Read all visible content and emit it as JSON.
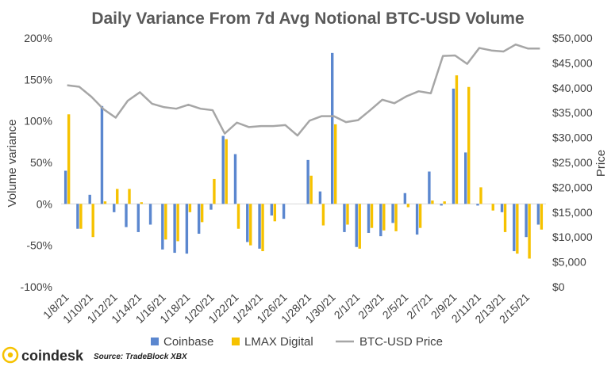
{
  "chart_data": {
    "type": "bar",
    "title": "Daily Variance From 7d Avg Notional BTC-USD Volume",
    "ylabel": "Volume variance",
    "y2label": "Price",
    "ylim": [
      -100,
      200
    ],
    "y2lim": [
      0,
      50000
    ],
    "yticks": [
      "200%",
      "150%",
      "100%",
      "50%",
      "0%",
      "-50%",
      "-100%"
    ],
    "y2ticks": [
      "$50,000",
      "$45,000",
      "$40,000",
      "$35,000",
      "$30,000",
      "$25,000",
      "$20,000",
      "$15,000",
      "$10,000",
      "$5,000",
      "$0"
    ],
    "x_tick_labels": [
      "1/8/21",
      "1/10/21",
      "1/12/21",
      "1/14/21",
      "1/16/21",
      "1/18/21",
      "1/20/21",
      "1/22/21",
      "1/24/21",
      "1/26/21",
      "1/28/21",
      "1/30/21",
      "2/1/21",
      "2/3/21",
      "2/5/21",
      "2/7/21",
      "2/9/21",
      "2/11/21",
      "2/13/21",
      "2/15/21"
    ],
    "categories": [
      "1/8/21",
      "1/9/21",
      "1/10/21",
      "1/11/21",
      "1/12/21",
      "1/13/21",
      "1/14/21",
      "1/15/21",
      "1/16/21",
      "1/17/21",
      "1/18/21",
      "1/19/21",
      "1/20/21",
      "1/21/21",
      "1/22/21",
      "1/23/21",
      "1/24/21",
      "1/25/21",
      "1/26/21",
      "1/27/21",
      "1/28/21",
      "1/29/21",
      "1/30/21",
      "1/31/21",
      "2/1/21",
      "2/2/21",
      "2/3/21",
      "2/4/21",
      "2/5/21",
      "2/6/21",
      "2/7/21",
      "2/8/21",
      "2/9/21",
      "2/10/21",
      "2/11/21",
      "2/12/21",
      "2/13/21",
      "2/14/21",
      "2/15/21",
      "2/16/21"
    ],
    "series": [
      {
        "name": "Coinbase",
        "kind": "bar",
        "axis": "left",
        "color": "#5B87CF",
        "values": [
          40,
          -30,
          11,
          118,
          -10,
          -28,
          -34,
          -25,
          -55,
          -59,
          -60,
          -36,
          -7,
          82,
          60,
          -46,
          -54,
          -14,
          -18,
          0,
          53,
          15,
          182,
          -34,
          -52,
          -35,
          -39,
          -23,
          13,
          -37,
          39,
          -2,
          139,
          62,
          -2,
          0,
          -10,
          -57,
          -40,
          -25
        ]
      },
      {
        "name": "LMAX Digital",
        "kind": "bar",
        "axis": "left",
        "color": "#F6C200",
        "values": [
          108,
          -30,
          -40,
          3,
          18,
          18,
          2,
          0,
          -43,
          -45,
          -10,
          -22,
          30,
          78,
          -30,
          -50,
          -57,
          -21,
          0,
          0,
          34,
          -26,
          96,
          -25,
          -54,
          -29,
          -32,
          -33,
          -4,
          -29,
          4,
          3,
          155,
          141,
          20,
          -8,
          -34,
          -60,
          -66,
          -31
        ]
      },
      {
        "name": "BTC-USD Price",
        "kind": "line",
        "axis": "right",
        "color": "#A6A6A6",
        "values": [
          40500,
          40200,
          38200,
          35700,
          34000,
          37400,
          39100,
          36800,
          36100,
          35800,
          36600,
          35800,
          35500,
          30800,
          33000,
          32100,
          32300,
          32300,
          32500,
          30400,
          33400,
          34300,
          34300,
          33100,
          33500,
          35500,
          37600,
          36900,
          38300,
          39300,
          38900,
          46400,
          46500,
          44800,
          48000,
          47500,
          47300,
          48700,
          47900,
          47900
        ]
      }
    ],
    "legend_position": "bottom",
    "grid": false
  },
  "brand": {
    "name": "coindesk",
    "source": "Source: TradeBlock XBX",
    "color": "#F6C200"
  }
}
